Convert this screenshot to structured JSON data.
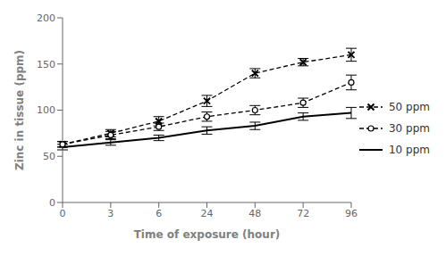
{
  "chart_data": {
    "type": "line",
    "categories": [
      "0",
      "3",
      "6",
      "24",
      "48",
      "72",
      "96"
    ],
    "xlabel": "Time of exposure (hour)",
    "ylabel": "Zinc in tissue (ppm)",
    "ylim": [
      0,
      200
    ],
    "yticks": [
      0,
      50,
      100,
      150,
      200
    ],
    "grid": false,
    "legend": "right",
    "series": [
      {
        "name": "50 ppm",
        "color": "black",
        "line_style": "dashed",
        "marker": "x",
        "values": [
          63,
          75,
          88,
          110,
          140,
          152,
          160
        ],
        "errors": [
          3,
          4,
          5,
          6,
          5,
          4,
          7
        ]
      },
      {
        "name": "30 ppm",
        "color": "black",
        "line_style": "dashed",
        "marker": "o",
        "values": [
          63,
          73,
          82,
          93,
          100,
          108,
          130
        ],
        "errors": [
          3,
          4,
          4,
          5,
          5,
          5,
          8
        ]
      },
      {
        "name": "10 ppm",
        "color": "black",
        "line_style": "solid",
        "marker": "none",
        "values": [
          60,
          65,
          70,
          78,
          83,
          93,
          97
        ],
        "errors": [
          3,
          3,
          3,
          4,
          4,
          4,
          6
        ]
      }
    ]
  }
}
